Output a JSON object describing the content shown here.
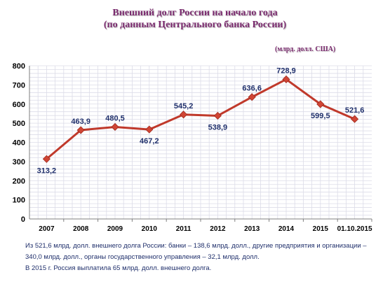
{
  "title_lines": [
    "Внешний долг России на начало года",
    "(по данным Центрального банка России)"
  ],
  "units": "(млрд. долл. США)",
  "footnote_lines": [
    "Из 521,6 млрд. долл. внешнего долга России: банки – 138,6 млрд. долл., другие предприятия и организации –",
    "340,0 млрд. долл., органы государственного управления – 32,1 млрд. долл.",
    "В 2015 г. Россия выплатила 65 млрд. долл. внешнего долга."
  ],
  "colors": {
    "line": "#c0392b",
    "marker": "#d04535",
    "grid": "#dcdce8",
    "title": "#7a2a6e",
    "labels": "#1f2f6b"
  },
  "chart_data": {
    "type": "line",
    "categories": [
      "2007",
      "2008",
      "2009",
      "2010",
      "2011",
      "2012",
      "2013",
      "2014",
      "2015",
      "01.10.2015"
    ],
    "series": [
      {
        "values": [
          313.2,
          463.9,
          480.5,
          467.2,
          545.2,
          538.9,
          636.6,
          728.9,
          599.5,
          521.6
        ],
        "labels": [
          "313,2",
          "463,9",
          "480,5",
          "467,2",
          "545,2",
          "538,9",
          "636,6",
          "728,9",
          "599,5",
          "521,6"
        ]
      }
    ],
    "ylim": [
      0,
      800
    ],
    "yticks": [
      "0",
      "100",
      "200",
      "300",
      "400",
      "500",
      "600",
      "700",
      "800"
    ],
    "grid": true,
    "legend": false
  }
}
